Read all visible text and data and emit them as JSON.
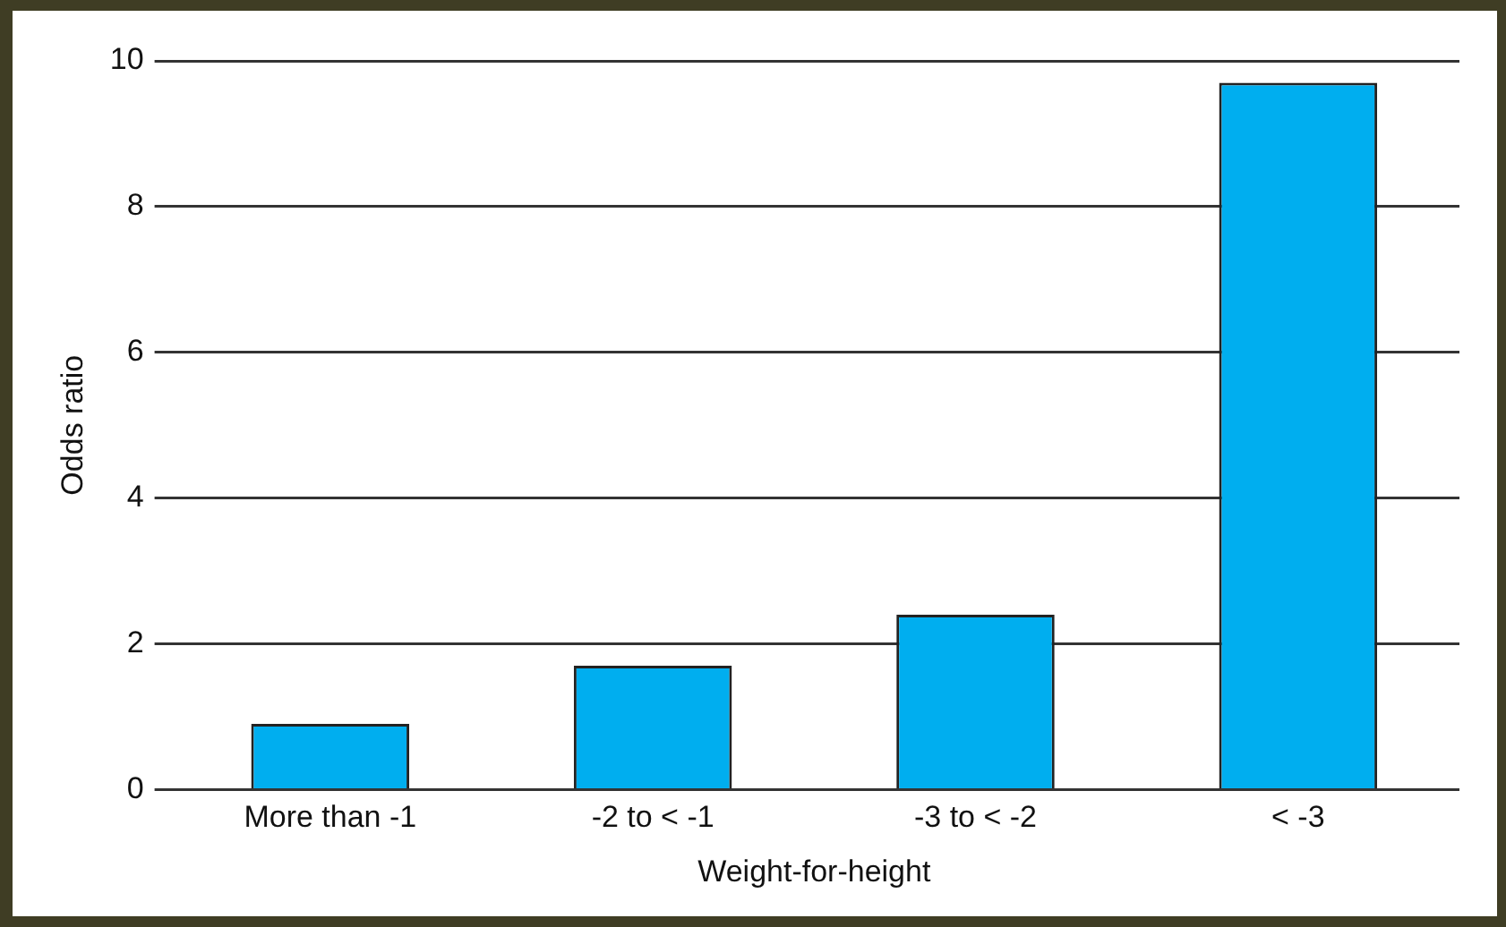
{
  "chart_data": {
    "type": "bar",
    "xlabel": "Weight-for-height",
    "ylabel": "Odds ratio",
    "categories": [
      "More than -1",
      "-2 to < -1",
      "-3 to < -2",
      "< -3"
    ],
    "values": [
      0.9,
      1.7,
      2.4,
      9.7
    ],
    "color": "#00aeef",
    "ylim": [
      0,
      10
    ],
    "yticks": [
      0,
      2,
      4,
      6,
      8,
      10
    ],
    "grid": "y",
    "legend": false
  }
}
